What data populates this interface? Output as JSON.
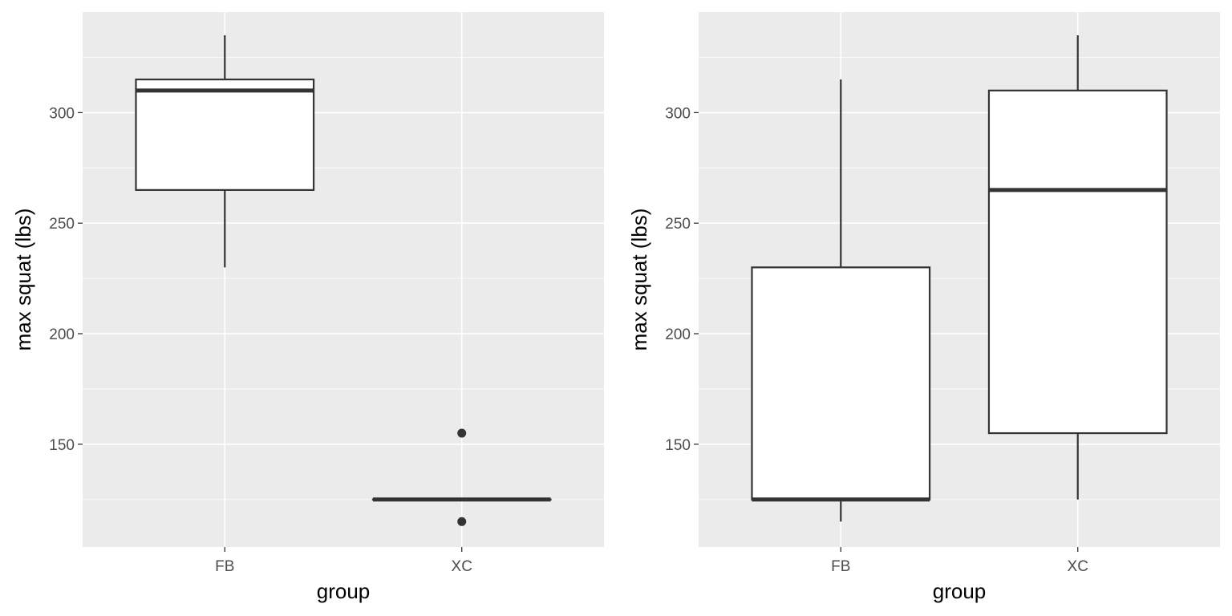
{
  "chart_data": [
    {
      "type": "boxplot",
      "xlabel": "group",
      "ylabel": "max squat (lbs)",
      "categories": [
        "FB",
        "XC"
      ],
      "ylim": [
        103.5,
        345.5
      ],
      "yticks": [
        150,
        200,
        250,
        300
      ],
      "grid": true,
      "boxes": [
        {
          "category": "FB",
          "whisker_low": 230,
          "q1": 265,
          "median": 310,
          "q3": 315,
          "whisker_high": 335,
          "outliers": []
        },
        {
          "category": "XC",
          "whisker_low": 125,
          "q1": 125,
          "median": 125,
          "q3": 125,
          "whisker_high": 125,
          "outliers": [
            155,
            115
          ]
        }
      ]
    },
    {
      "type": "boxplot",
      "xlabel": "group",
      "ylabel": "max squat (lbs)",
      "categories": [
        "FB",
        "XC"
      ],
      "ylim": [
        103.5,
        345.5
      ],
      "yticks": [
        150,
        200,
        250,
        300
      ],
      "grid": true,
      "boxes": [
        {
          "category": "FB",
          "whisker_low": 115,
          "q1": 125,
          "median": 125,
          "q3": 230,
          "whisker_high": 315,
          "outliers": []
        },
        {
          "category": "XC",
          "whisker_low": 125,
          "q1": 155,
          "median": 265,
          "q3": 310,
          "whisker_high": 335,
          "outliers": []
        }
      ]
    }
  ]
}
